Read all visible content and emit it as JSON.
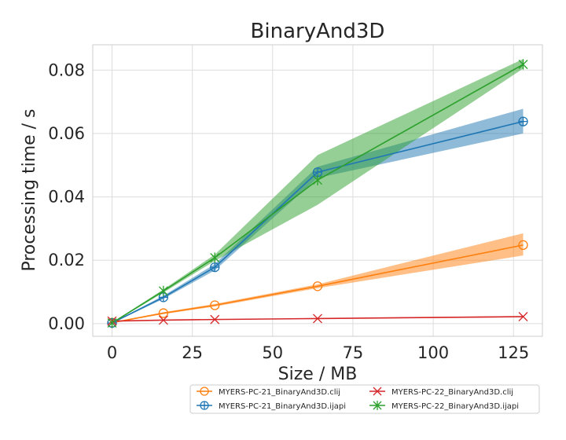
{
  "chart_data": {
    "type": "line",
    "title": "BinaryAnd3D",
    "xlabel": "Size / MB",
    "ylabel": "Processing time / s",
    "xlim": [
      -6,
      134
    ],
    "ylim": [
      -0.004,
      0.088
    ],
    "xticks": [
      0,
      25,
      50,
      75,
      100,
      125
    ],
    "xtick_labels": [
      "0",
      "25",
      "50",
      "75",
      "100",
      "125"
    ],
    "yticks": [
      0.0,
      0.02,
      0.04,
      0.06,
      0.08
    ],
    "ytick_labels": [
      "0.00",
      "0.02",
      "0.04",
      "0.06",
      "0.08"
    ],
    "grid": true,
    "legend_position": "bottom-right, below axes",
    "series": [
      {
        "name": "MYERS-PC-21_BinaryAnd3D.clij",
        "color": "#ff7f0e",
        "marker": "circle",
        "x": [
          0,
          16,
          32,
          64,
          128
        ],
        "y": [
          0.0003,
          0.0033,
          0.0058,
          0.0118,
          0.0248
        ],
        "y_low": [
          0.0002,
          0.003,
          0.0054,
          0.0112,
          0.0215
        ],
        "y_high": [
          0.0004,
          0.0036,
          0.0062,
          0.0124,
          0.0285
        ]
      },
      {
        "name": "MYERS-PC-21_BinaryAnd3D.ijapi",
        "color": "#1f77b4",
        "marker": "circle-plus",
        "x": [
          0,
          16,
          32,
          64,
          128
        ],
        "y": [
          0.0002,
          0.0083,
          0.0178,
          0.0478,
          0.0638
        ],
        "y_low": [
          0.0001,
          0.0078,
          0.0168,
          0.046,
          0.06
        ],
        "y_high": [
          0.0003,
          0.0088,
          0.0188,
          0.0495,
          0.0678
        ]
      },
      {
        "name": "MYERS-PC-22_BinaryAnd3D.clij",
        "color": "#d62728",
        "marker": "x",
        "x": [
          0,
          16,
          32,
          64,
          128
        ],
        "y": [
          0.0008,
          0.0011,
          0.0013,
          0.0016,
          0.0022
        ],
        "y_low": [
          0.0007,
          0.001,
          0.0012,
          0.0015,
          0.002
        ],
        "y_high": [
          0.0009,
          0.0012,
          0.0014,
          0.0017,
          0.0024
        ]
      },
      {
        "name": "MYERS-PC-22_BinaryAnd3D.ijapi",
        "color": "#2ca02c",
        "marker": "star",
        "x": [
          0,
          16,
          32,
          64,
          128
        ],
        "y": [
          0.0002,
          0.0103,
          0.0208,
          0.0453,
          0.0818
        ],
        "y_low": [
          0.0001,
          0.0098,
          0.0198,
          0.0375,
          0.0805
        ],
        "y_high": [
          0.0003,
          0.0108,
          0.0218,
          0.0532,
          0.0835
        ]
      }
    ]
  }
}
